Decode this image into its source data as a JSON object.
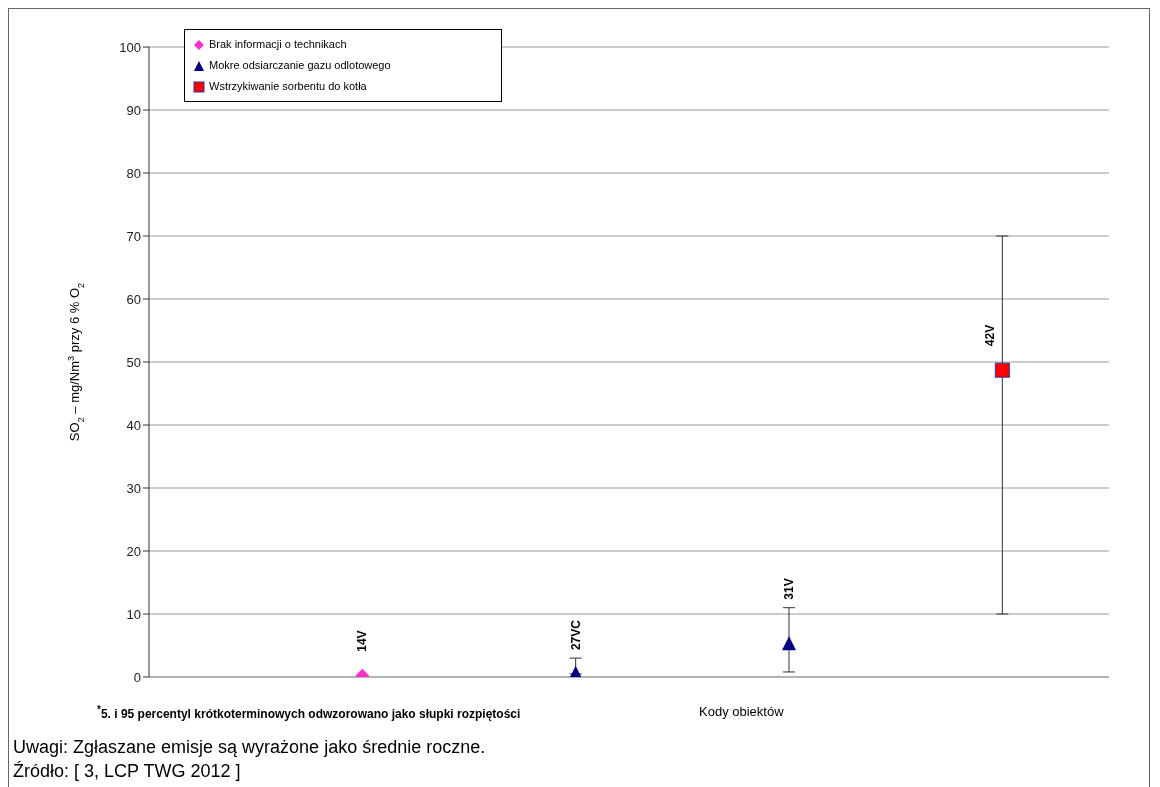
{
  "chart_data": {
    "type": "scatter",
    "ylabel": "SO$_{2}$ – mg/Nm$^{3}$ przy 6 % O$_{2}$",
    "xlabel": "Kody obiektów",
    "categories": [
      "14V",
      "27VC",
      "31V",
      "42V"
    ],
    "series": [
      {
        "name": "Brak informacji o technikach",
        "color": "#ff33cc",
        "marker": "diamond",
        "values": [
          0.2,
          null,
          null,
          null
        ]
      },
      {
        "name": "Mokre odsiarczanie gazu odlotowego",
        "color": "#000080",
        "marker": "triangle",
        "values": [
          null,
          0.5,
          5.2,
          null
        ],
        "errors": [
          null,
          [
            0.5,
            3
          ],
          [
            0.8,
            11
          ],
          null
        ]
      },
      {
        "name": "Wstrzykiwanie sorbentu do kotła",
        "color": "#ff0000",
        "marker": "square",
        "values": [
          null,
          null,
          null,
          48.7
        ],
        "errors": [
          null,
          null,
          null,
          [
            10,
            70
          ]
        ]
      }
    ],
    "ylim": [
      0,
      100
    ],
    "yticks": [
      0,
      10,
      20,
      30,
      40,
      50,
      60,
      70,
      80,
      90,
      100
    ],
    "grid": "y",
    "legend": "top left",
    "annotations": [
      "$^{*}$5. i 95 percentyl krótkoterminowych odwzorowano jako słupki rozpiętości",
      "Uwagi: Zgłaszane emisje są wyrażone jako średnie roczne.",
      "Źródło: [ 3, LCP TWG 2012 ]"
    ]
  }
}
